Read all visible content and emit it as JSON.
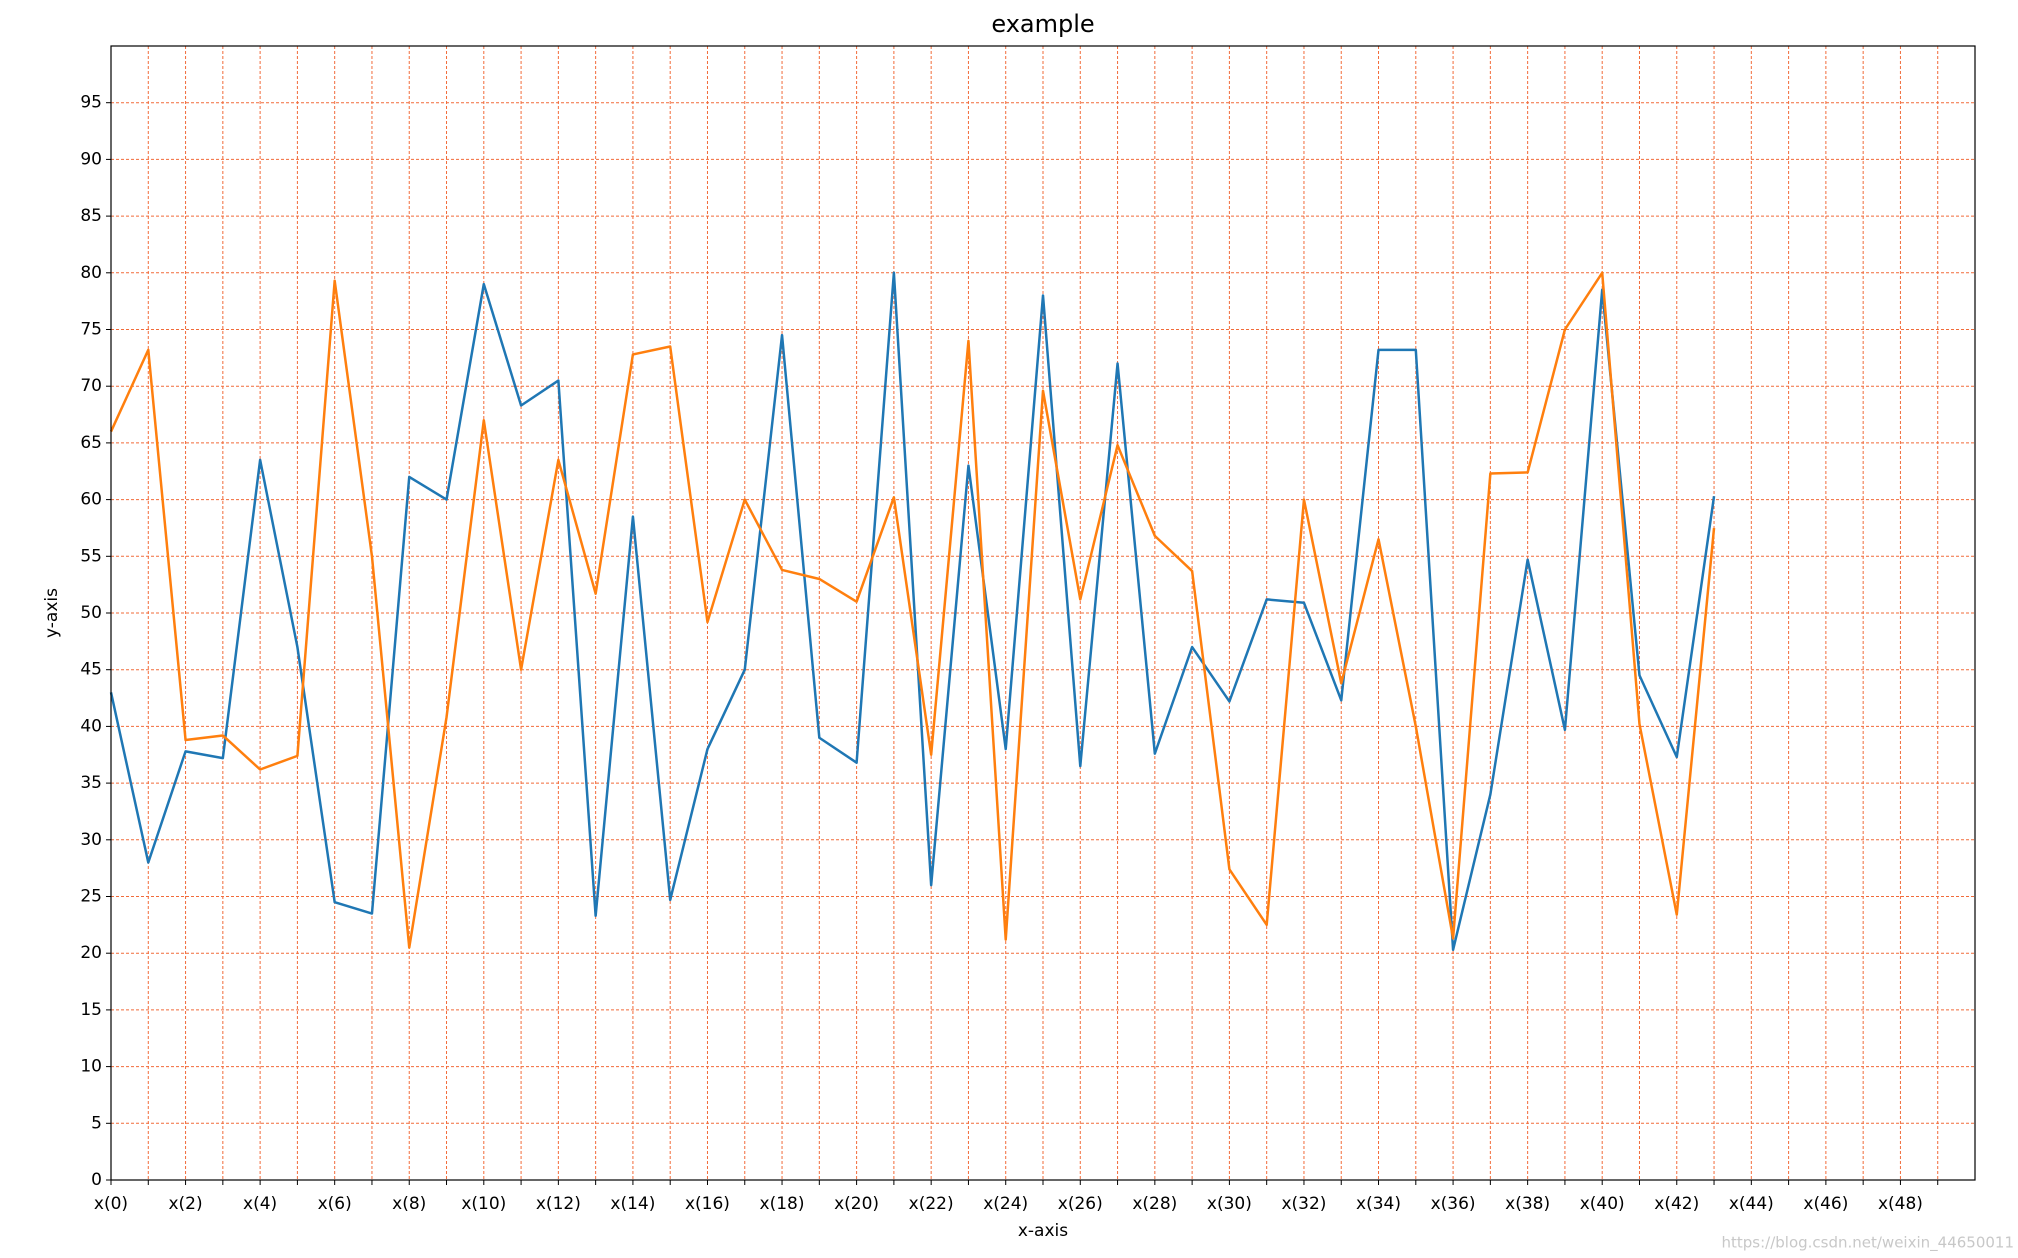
{
  "chart_data": {
    "type": "line",
    "title": "example",
    "x_label": "x-axis",
    "y_label": "y-axis",
    "x": [
      0,
      1,
      2,
      3,
      4,
      5,
      6,
      7,
      8,
      9,
      10,
      11,
      12,
      13,
      14,
      15,
      16,
      17,
      18,
      19,
      20,
      21,
      22,
      23,
      24,
      25,
      26,
      27,
      28,
      29,
      30,
      31,
      32,
      33,
      34,
      35,
      36,
      37,
      38,
      39,
      40,
      41,
      42,
      43
    ],
    "series": [
      {
        "color": "#1f77b4",
        "values": [
          43,
          28,
          37.8,
          37.2,
          63.5,
          47,
          24.5,
          23.5,
          62,
          60,
          79,
          68.3,
          70.5,
          23.3,
          58.5,
          24.7,
          38,
          45,
          74.5,
          39,
          36.8,
          80,
          26,
          63,
          38,
          78,
          36.5,
          72,
          37.6,
          47,
          42.2,
          51.2,
          50.9,
          42.3,
          73.2,
          73.2,
          20.3,
          34,
          54.7,
          39.7,
          78.5,
          44.5,
          37.3,
          60.3
        ]
      },
      {
        "color": "#ff7f0e",
        "values": [
          66,
          73.2,
          38.8,
          39.2,
          36.2,
          37.4,
          79.3,
          55,
          20.5,
          40.8,
          67,
          45,
          63.5,
          51.7,
          72.8,
          73.5,
          49.2,
          60,
          53.8,
          53,
          51,
          60.2,
          37.5,
          74,
          21.2,
          69.6,
          51.2,
          64.8,
          56.8,
          53.7,
          27.4,
          22.5,
          60,
          43.8,
          56.5,
          40,
          21.3,
          62.3,
          62.4,
          75,
          80,
          40.2,
          23.4,
          57.5
        ]
      }
    ],
    "xlim": [
      0,
      50
    ],
    "xticks": [
      {
        "value": 0,
        "label": "x(0)"
      },
      {
        "value": 2,
        "label": "x(2)"
      },
      {
        "value": 4,
        "label": "x(4)"
      },
      {
        "value": 6,
        "label": "x(6)"
      },
      {
        "value": 8,
        "label": "x(8)"
      },
      {
        "value": 10,
        "label": "x(10)"
      },
      {
        "value": 12,
        "label": "x(12)"
      },
      {
        "value": 14,
        "label": "x(14)"
      },
      {
        "value": 16,
        "label": "x(16)"
      },
      {
        "value": 18,
        "label": "x(18)"
      },
      {
        "value": 20,
        "label": "x(20)"
      },
      {
        "value": 22,
        "label": "x(22)"
      },
      {
        "value": 24,
        "label": "x(24)"
      },
      {
        "value": 26,
        "label": "x(26)"
      },
      {
        "value": 28,
        "label": "x(28)"
      },
      {
        "value": 30,
        "label": "x(30)"
      },
      {
        "value": 32,
        "label": "x(32)"
      },
      {
        "value": 34,
        "label": "x(34)"
      },
      {
        "value": 36,
        "label": "x(36)"
      },
      {
        "value": 38,
        "label": "x(38)"
      },
      {
        "value": 40,
        "label": "x(40)"
      },
      {
        "value": 42,
        "label": "x(42)"
      },
      {
        "value": 44,
        "label": "x(44)"
      },
      {
        "value": 46,
        "label": "x(46)"
      },
      {
        "value": 48,
        "label": "x(48)"
      }
    ],
    "xminorticks": [
      1,
      3,
      5,
      7,
      9,
      11,
      13,
      15,
      17,
      19,
      21,
      23,
      25,
      27,
      29,
      31,
      33,
      35,
      37,
      39,
      41,
      43,
      45,
      47,
      49
    ],
    "ylim": [
      0,
      100
    ],
    "yticks": [
      0,
      5,
      10,
      15,
      20,
      25,
      30,
      35,
      40,
      45,
      50,
      55,
      60,
      65,
      70,
      75,
      80,
      85,
      90,
      95
    ],
    "grid": true,
    "grid_color": "#f26b3a",
    "watermark": "https://blog.csdn.net/weixin_44650011"
  }
}
